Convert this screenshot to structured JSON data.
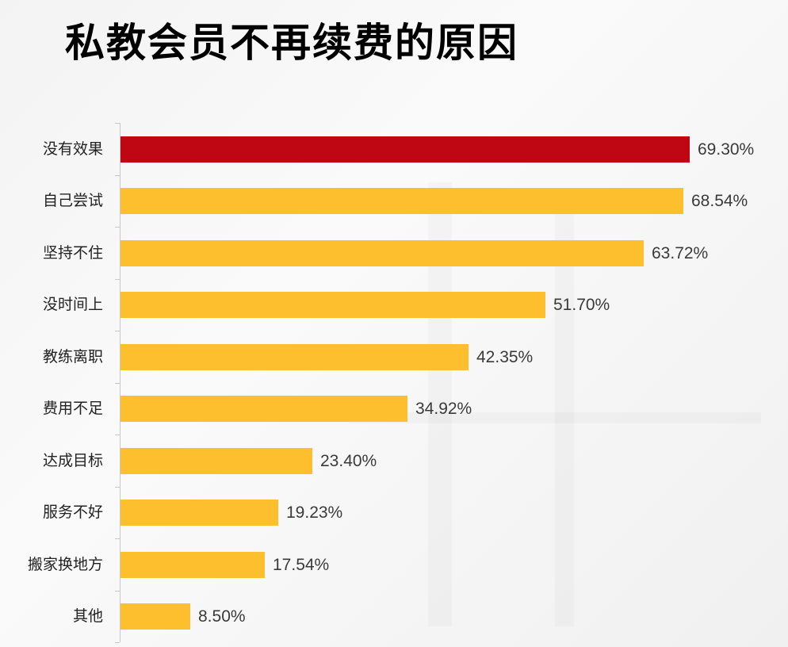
{
  "title": "私教会员不再续费的原因",
  "colors": {
    "highlight": "#BE0712",
    "default": "#FDBF2D"
  },
  "chart_data": {
    "type": "bar",
    "orientation": "horizontal",
    "title": "私教会员不再续费的原因",
    "xlabel": "",
    "ylabel": "",
    "categories": [
      "没有效果",
      "自己尝试",
      "坚持不住",
      "没时间上",
      "教练离职",
      "费用不足",
      "达成目标",
      "服务不好",
      "搬家换地方",
      "其他"
    ],
    "values": [
      69.3,
      68.54,
      63.72,
      51.7,
      42.35,
      34.92,
      23.4,
      19.23,
      17.54,
      8.5
    ],
    "value_labels": [
      "69.30%",
      "68.54%",
      "63.72%",
      "51.70%",
      "42.35%",
      "34.92%",
      "23.40%",
      "19.23%",
      "17.54%",
      "8.50%"
    ],
    "unit": "%",
    "highlighted_index": 0,
    "grid": false,
    "legend": null
  }
}
